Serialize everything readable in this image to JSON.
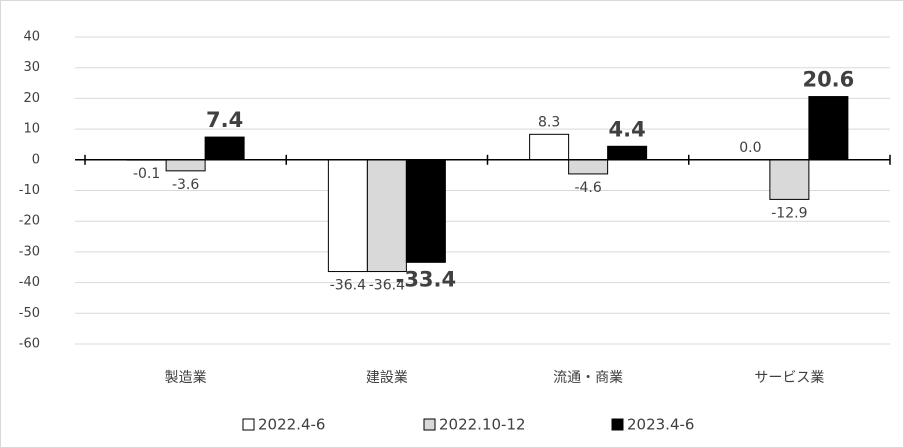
{
  "chart_data": {
    "type": "bar",
    "categories": [
      "製造業",
      "建設業",
      "流通・商業",
      "サービス業"
    ],
    "series": [
      {
        "name": "2022.4-6",
        "color": "#ffffff",
        "values": [
          -0.1,
          -36.4,
          8.3,
          0
        ],
        "value_labels": [
          "-0.1",
          "-36.4",
          "8.3",
          "0.0"
        ]
      },
      {
        "name": "2022.10-12",
        "color": "#d9d9d9",
        "values": [
          -3.6,
          -36.4,
          -4.6,
          -12.9
        ]
      },
      {
        "name": "2023.4-6",
        "color": "#000000",
        "values": [
          7.4,
          -33.4,
          4.4,
          20.6
        ],
        "bold_labels": true
      }
    ],
    "ylim": [
      -60,
      40
    ],
    "yticks": [
      40,
      30,
      20,
      10,
      0,
      -10,
      -20,
      -30,
      -40,
      -50,
      -60
    ],
    "grid": true,
    "legend": "bottom"
  }
}
